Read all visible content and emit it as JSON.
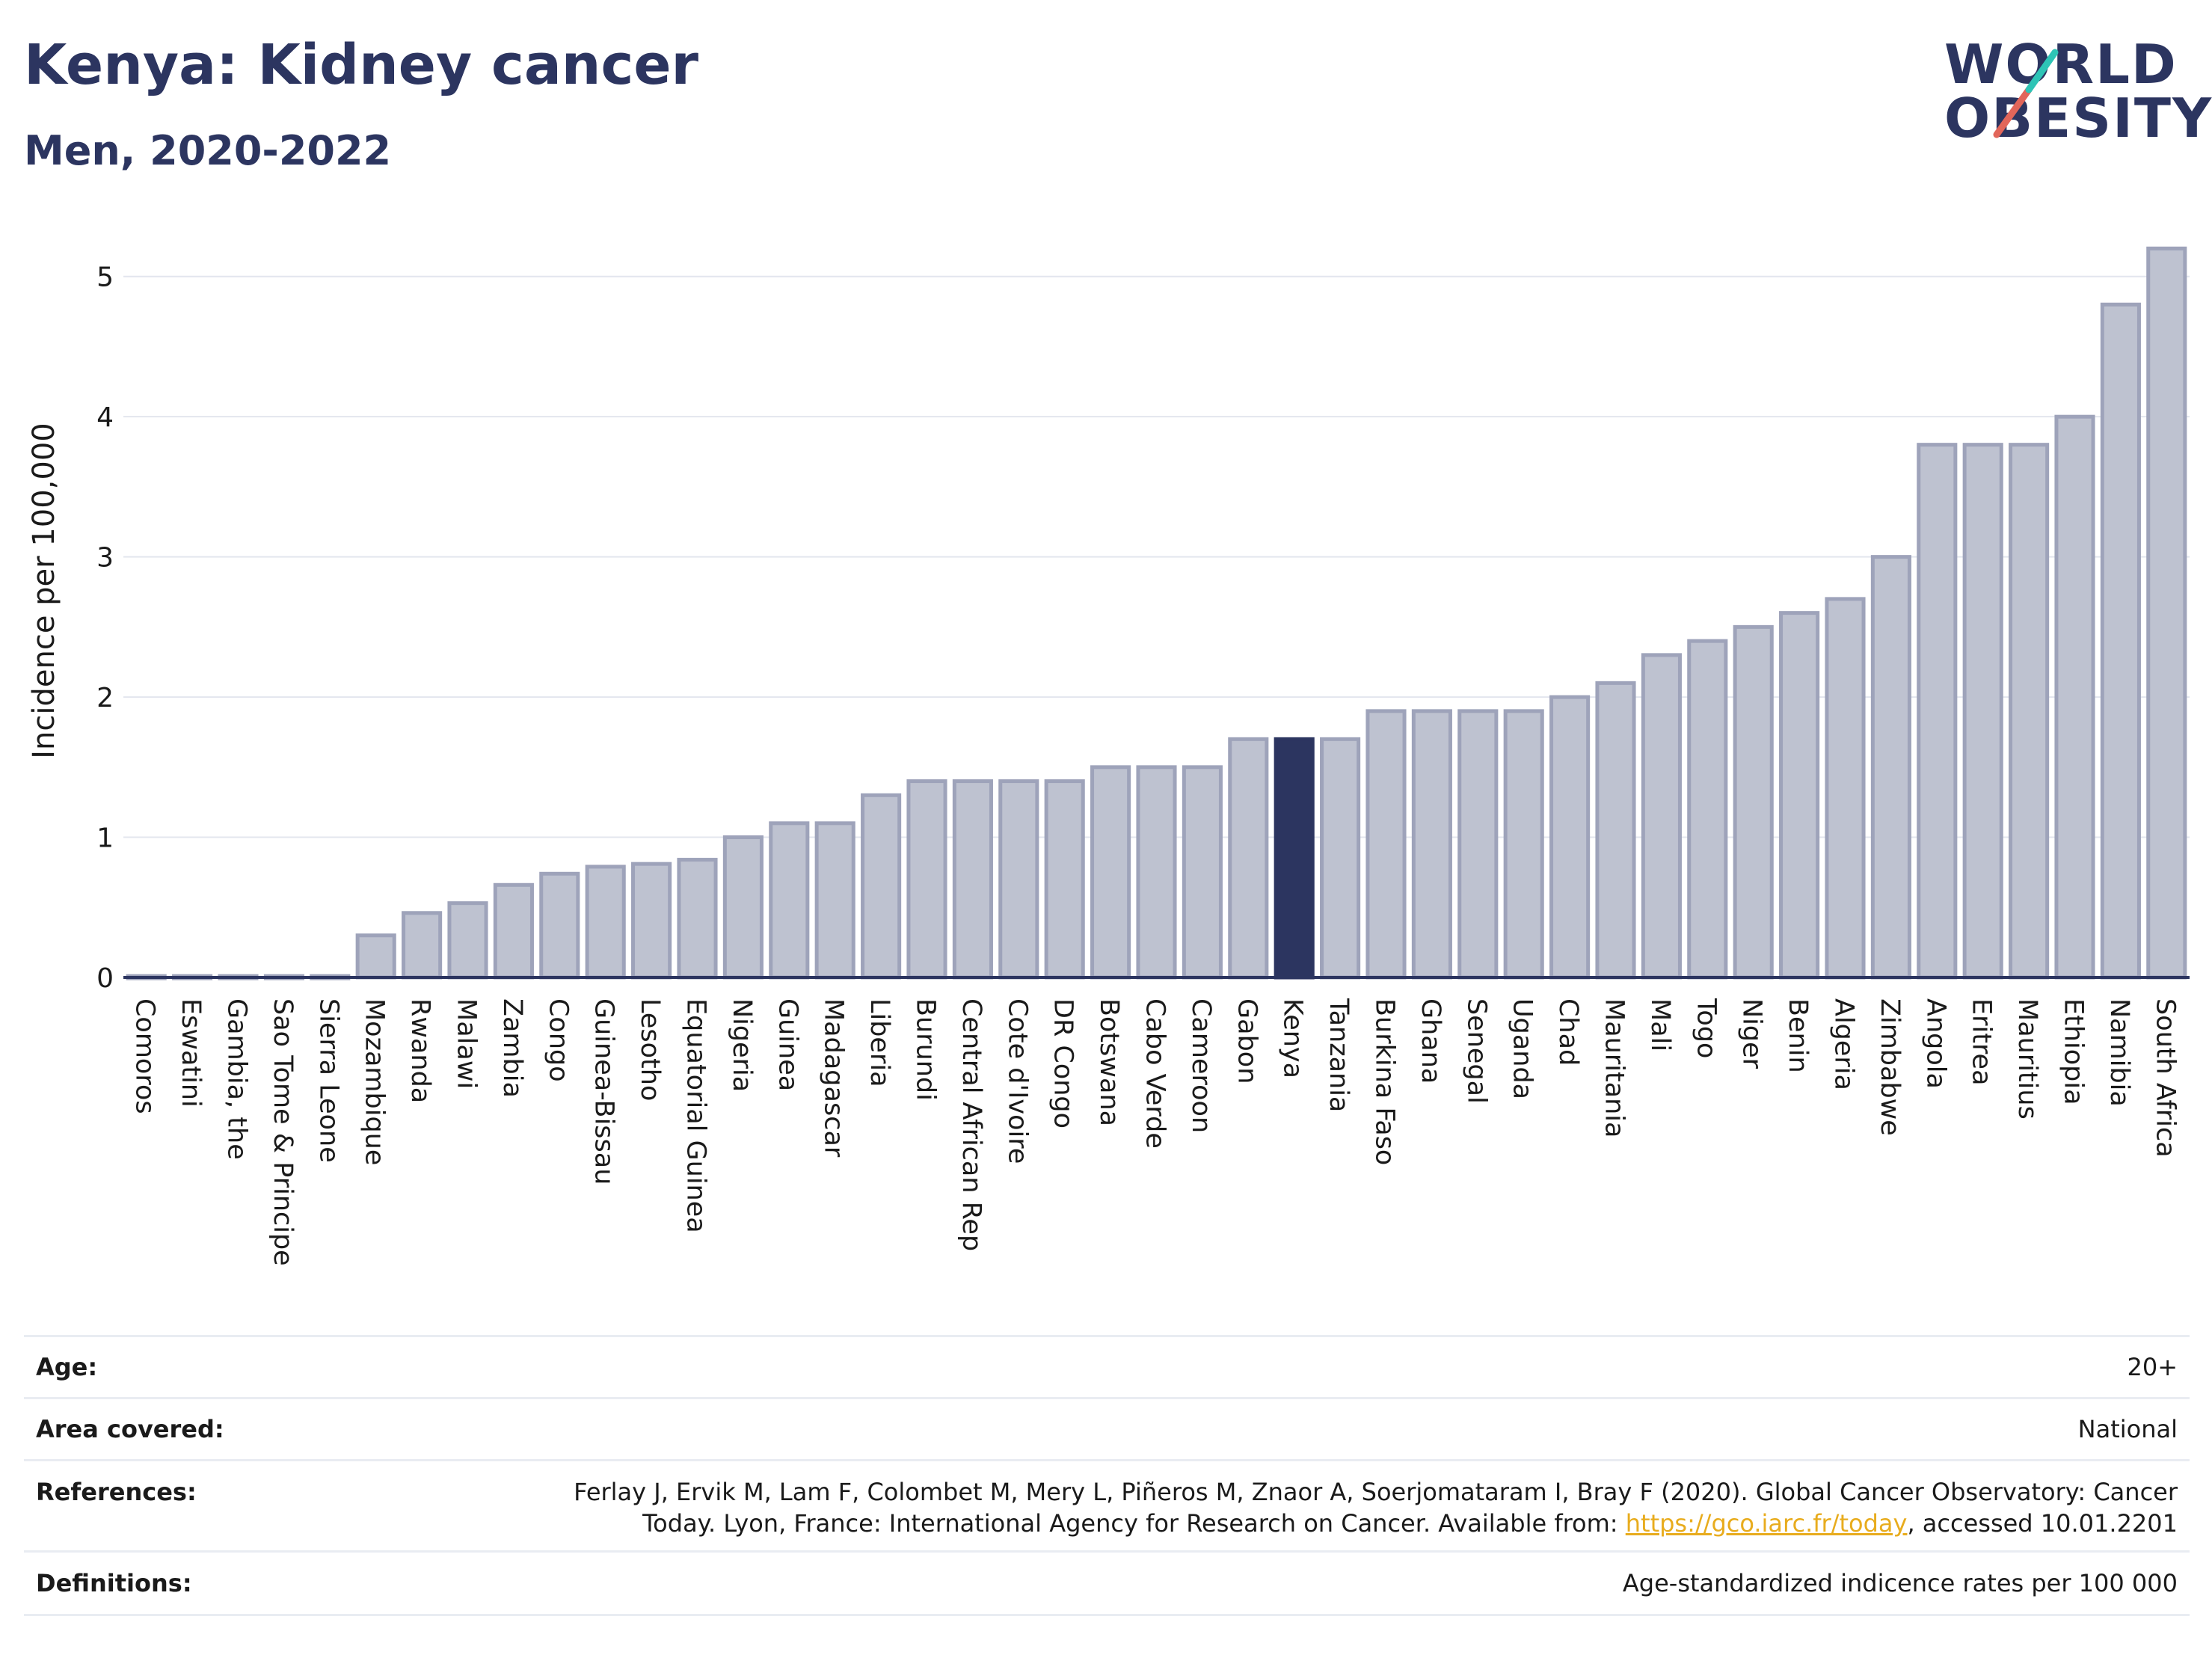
{
  "header": {
    "title": "Kenya: Kidney cancer",
    "subtitle": "Men, 2020-2022"
  },
  "logo": {
    "line1": "WORLD",
    "line2": "OBESITY",
    "slash_colors": [
      "#2ec4b6",
      "#e2665a"
    ]
  },
  "chart_data": {
    "type": "bar",
    "ylabel": "Incidence per 100,000",
    "xlabel": "",
    "ylim": [
      0,
      5.5
    ],
    "yticks": [
      0,
      1,
      2,
      3,
      4,
      5
    ],
    "grid": true,
    "highlight": "Kenya",
    "colors": {
      "bar": "#bec2d0",
      "bar_edge": "#9ea3ba",
      "highlight": "#2c3560",
      "axis": "#2c3560",
      "grid": "#e3e6ee"
    },
    "categories": [
      "Comoros",
      "Eswatini",
      "Gambia, the",
      "Sao Tome & Principe",
      "Sierra Leone",
      "Mozambique",
      "Rwanda",
      "Malawi",
      "Zambia",
      "Congo",
      "Guinea-Bissau",
      "Lesotho",
      "Equatorial Guinea",
      "Nigeria",
      "Guinea",
      "Madagascar",
      "Liberia",
      "Burundi",
      "Central African Rep",
      "Cote d'Ivoire",
      "DR Congo",
      "Botswana",
      "Cabo Verde",
      "Cameroon",
      "Gabon",
      "Kenya",
      "Tanzania",
      "Burkina Faso",
      "Ghana",
      "Senegal",
      "Uganda",
      "Chad",
      "Mauritania",
      "Mali",
      "Togo",
      "Niger",
      "Benin",
      "Algeria",
      "Zimbabwe",
      "Angola",
      "Eritrea",
      "Mauritius",
      "Ethiopia",
      "Namibia",
      "South Africa"
    ],
    "values": [
      0.01,
      0.01,
      0.01,
      0.01,
      0.01,
      0.3,
      0.46,
      0.53,
      0.66,
      0.74,
      0.79,
      0.81,
      0.84,
      1.0,
      1.1,
      1.1,
      1.3,
      1.4,
      1.4,
      1.4,
      1.4,
      1.5,
      1.5,
      1.5,
      1.7,
      1.7,
      1.7,
      1.9,
      1.9,
      1.9,
      1.9,
      2.0,
      2.1,
      2.3,
      2.4,
      2.5,
      2.6,
      2.7,
      3.0,
      3.8,
      3.8,
      3.8,
      4.0,
      4.8,
      5.2
    ]
  },
  "meta": {
    "age_label": "Age:",
    "age_value": "20+",
    "area_label": "Area covered:",
    "area_value": "National",
    "references_label": "References:",
    "references_text": "Ferlay J, Ervik M, Lam F, Colombet M, Mery L, Piñeros M, Znaor A, Soerjomataram I, Bray F (2020). Global Cancer Observatory: Cancer Today. Lyon, France: International Agency for Research on Cancer. Available from: ",
    "references_link": "https://gco.iarc.fr/today",
    "references_suffix": ", accessed 10.01.2201",
    "definitions_label": "Definitions:",
    "definitions_value": "Age-standardized indicence rates per 100 000"
  }
}
